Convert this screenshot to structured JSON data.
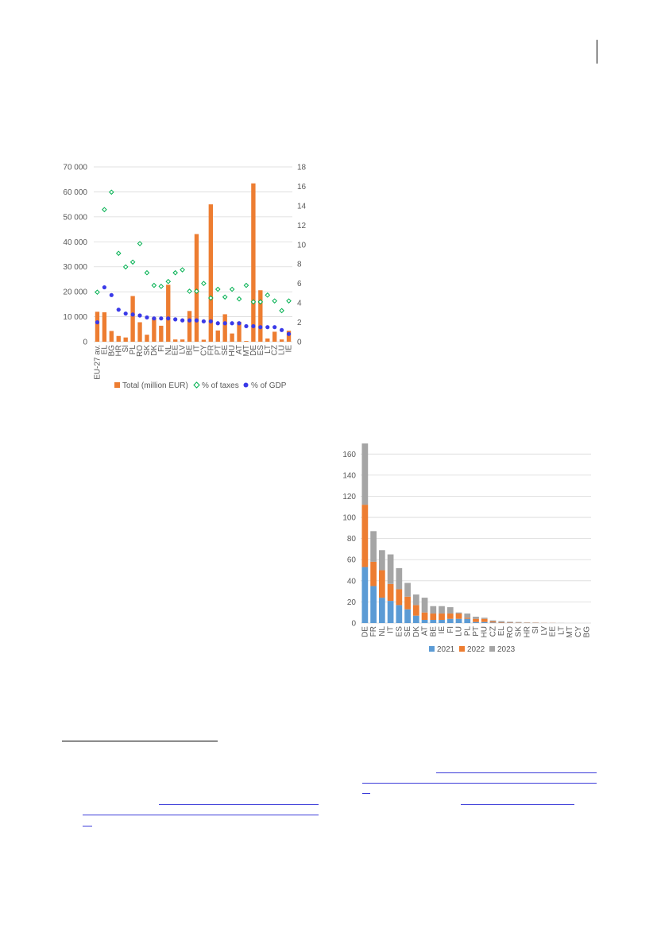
{
  "chart_data": [
    {
      "type": "bar",
      "categories": [
        "EU-27 av.",
        "EL",
        "BG",
        "HR",
        "SI",
        "PL",
        "RO",
        "SK",
        "DK",
        "FI",
        "NL",
        "EE",
        "LV",
        "BE",
        "IT",
        "CY",
        "FR",
        "PT",
        "SE",
        "HU",
        "AT",
        "MT",
        "DE",
        "ES",
        "LT",
        "CZ",
        "LU",
        "IE"
      ],
      "series": [
        {
          "name": "Total (million EUR)",
          "type": "bar",
          "axis": "left",
          "color": "#ED7D31",
          "values": [
            12000,
            11800,
            4300,
            2300,
            1700,
            18300,
            7800,
            2800,
            9700,
            6400,
            22800,
            900,
            900,
            12300,
            43100,
            800,
            55000,
            4500,
            11000,
            3300,
            8000,
            300,
            63400,
            20600,
            1300,
            4000,
            900,
            4400
          ]
        },
        {
          "name": "% of taxes",
          "type": "scatter",
          "axis": "right",
          "color": "#00B050",
          "marker": "diamond-open",
          "values": [
            5.1,
            13.6,
            15.4,
            9.1,
            7.7,
            8.2,
            10.1,
            7.1,
            5.8,
            5.7,
            6.2,
            7.1,
            7.4,
            5.2,
            5.2,
            6.0,
            4.5,
            5.4,
            4.6,
            5.4,
            4.4,
            5.8,
            4.1,
            4.1,
            4.8,
            4.2,
            3.2,
            4.2
          ]
        },
        {
          "name": "% of GDP",
          "type": "scatter",
          "axis": "right",
          "color": "#3A3AE8",
          "marker": "circle",
          "values": [
            2.0,
            5.6,
            4.8,
            3.3,
            2.9,
            2.8,
            2.7,
            2.5,
            2.4,
            2.4,
            2.4,
            2.3,
            2.2,
            2.2,
            2.2,
            2.1,
            2.1,
            1.9,
            1.9,
            1.9,
            1.9,
            1.6,
            1.6,
            1.5,
            1.5,
            1.5,
            1.2,
            0.8
          ]
        }
      ],
      "ylim_left": [
        0,
        70000
      ],
      "yticks_left": [
        "0",
        "10 000",
        "20 000",
        "30 000",
        "40 000",
        "50 000",
        "60 000",
        "70 000"
      ],
      "ylim_right": [
        0,
        18
      ],
      "yticks_right": [
        "0",
        "2",
        "4",
        "6",
        "8",
        "10",
        "12",
        "14",
        "16",
        "18"
      ],
      "grid": true,
      "legend_position": "bottom"
    },
    {
      "type": "bar",
      "stacked": true,
      "categories": [
        "DE",
        "FR",
        "NL",
        "IT",
        "ES",
        "SE",
        "DK",
        "AT",
        "BE",
        "IE",
        "FI",
        "LU",
        "PL",
        "PT",
        "HU",
        "CZ",
        "EL",
        "RO",
        "SK",
        "HR",
        "SI",
        "LV",
        "EE",
        "LT",
        "MT",
        "CY",
        "BG"
      ],
      "series": [
        {
          "name": "2021",
          "color": "#5B9BD5",
          "values": [
            53,
            35,
            24,
            21,
            17,
            13,
            7,
            3,
            3,
            3,
            4,
            4,
            4,
            1,
            1,
            0.5,
            0.3,
            0.3,
            0.2,
            0.1,
            0.1,
            0,
            0,
            0,
            0,
            0,
            0
          ]
        },
        {
          "name": "2022",
          "color": "#ED7D31",
          "values": [
            59,
            23,
            26,
            16,
            15,
            12,
            10,
            7,
            6,
            6,
            5,
            5,
            1,
            3,
            3,
            1,
            0.5,
            0.4,
            0.3,
            0.2,
            0.2,
            0.1,
            0.1,
            0,
            0,
            0,
            0
          ]
        },
        {
          "name": "2023",
          "color": "#A5A5A5",
          "values": [
            58,
            29,
            19,
            28,
            20,
            13,
            10,
            14,
            7,
            7,
            6,
            1,
            4,
            2,
            1,
            1,
            1,
            0.5,
            0.5,
            0.3,
            0.2,
            0.1,
            0.1,
            0.1,
            0,
            0,
            0
          ]
        }
      ],
      "ylim": [
        0,
        170
      ],
      "yticks": [
        "0",
        "20",
        "40",
        "60",
        "80",
        "100",
        "120",
        "140",
        "160"
      ],
      "grid": true,
      "legend_position": "bottom"
    }
  ]
}
